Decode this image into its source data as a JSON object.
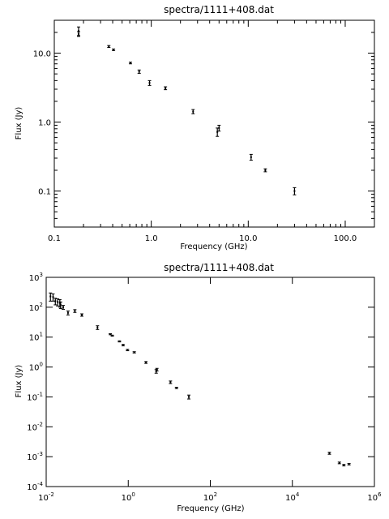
{
  "chart_data": [
    {
      "type": "scatter",
      "title": "spectra/1111+408.dat",
      "xlabel": "Frequency (GHz)",
      "ylabel": "Flux (Jy)",
      "xscale": "log",
      "yscale": "log",
      "xlim": [
        0.1,
        200
      ],
      "ylim": [
        0.03,
        30
      ],
      "x_ticks": [
        {
          "value": 0.1,
          "label": "0.1"
        },
        {
          "value": 1,
          "label": "1.0"
        },
        {
          "value": 10,
          "label": "10.0"
        },
        {
          "value": 100,
          "label": "100.0"
        }
      ],
      "y_ticks": [
        {
          "value": 0.1,
          "label": "0.1"
        },
        {
          "value": 1,
          "label": "1.0"
        },
        {
          "value": 10,
          "label": "10.0"
        }
      ],
      "points": [
        {
          "x": 0.178,
          "y": 21.0,
          "err": 3.0
        },
        {
          "x": 0.178,
          "y": 19.0,
          "err": 1.5
        },
        {
          "x": 0.365,
          "y": 12.5,
          "err": 0.4
        },
        {
          "x": 0.408,
          "y": 11.2,
          "err": 0.3
        },
        {
          "x": 0.61,
          "y": 7.2,
          "err": 0.2
        },
        {
          "x": 0.75,
          "y": 5.4,
          "err": 0.3
        },
        {
          "x": 0.96,
          "y": 3.7,
          "err": 0.3
        },
        {
          "x": 1.4,
          "y": 3.1,
          "err": 0.15
        },
        {
          "x": 2.7,
          "y": 1.42,
          "err": 0.1
        },
        {
          "x": 4.8,
          "y": 0.72,
          "err": 0.1
        },
        {
          "x": 5.0,
          "y": 0.82,
          "err": 0.08
        },
        {
          "x": 10.7,
          "y": 0.31,
          "err": 0.03
        },
        {
          "x": 15.0,
          "y": 0.2,
          "err": 0.01
        },
        {
          "x": 30.0,
          "y": 0.1,
          "err": 0.012
        }
      ]
    },
    {
      "type": "scatter",
      "title": "spectra/1111+408.dat",
      "xlabel": "Frequency (GHz)",
      "ylabel": "Flux (Jy)",
      "xscale": "log",
      "yscale": "log",
      "xlim": [
        0.01,
        1000000
      ],
      "ylim": [
        0.0001,
        1000
      ],
      "x_ticks": [
        {
          "value": 0.01,
          "base": "10",
          "exp": "-2"
        },
        {
          "value": 1,
          "base": "10",
          "exp": "0"
        },
        {
          "value": 100,
          "base": "10",
          "exp": "2"
        },
        {
          "value": 10000,
          "base": "10",
          "exp": "4"
        },
        {
          "value": 1000000,
          "base": "10",
          "exp": "6"
        }
      ],
      "y_ticks": [
        {
          "value": 0.0001,
          "base": "10",
          "exp": "-4"
        },
        {
          "value": 0.001,
          "base": "10",
          "exp": "-3"
        },
        {
          "value": 0.01,
          "base": "10",
          "exp": "-2"
        },
        {
          "value": 0.1,
          "base": "10",
          "exp": "-1"
        },
        {
          "value": 1,
          "base": "10",
          "exp": "0"
        },
        {
          "value": 10,
          "base": "10",
          "exp": "1"
        },
        {
          "value": 100,
          "base": "10",
          "exp": "2"
        },
        {
          "value": 1000,
          "base": "10",
          "exp": "3"
        }
      ],
      "points": [
        {
          "x": 0.0127,
          "y": 230,
          "err": 70
        },
        {
          "x": 0.0147,
          "y": 220,
          "err": 60
        },
        {
          "x": 0.0167,
          "y": 160,
          "err": 40
        },
        {
          "x": 0.019,
          "y": 150,
          "err": 40
        },
        {
          "x": 0.0215,
          "y": 140,
          "err": 40
        },
        {
          "x": 0.0225,
          "y": 120,
          "err": 30
        },
        {
          "x": 0.026,
          "y": 100,
          "err": 15
        },
        {
          "x": 0.034,
          "y": 65,
          "err": 10
        },
        {
          "x": 0.05,
          "y": 75,
          "err": 8
        },
        {
          "x": 0.074,
          "y": 55,
          "err": 5
        },
        {
          "x": 0.178,
          "y": 21,
          "err": 3
        },
        {
          "x": 0.365,
          "y": 12.5,
          "err": 0.5
        },
        {
          "x": 0.408,
          "y": 11.2,
          "err": 0.4
        },
        {
          "x": 0.61,
          "y": 7.2,
          "err": 0.3
        },
        {
          "x": 0.75,
          "y": 5.4,
          "err": 0.3
        },
        {
          "x": 0.96,
          "y": 3.7,
          "err": 0.2
        },
        {
          "x": 1.4,
          "y": 3.1,
          "err": 0.15
        },
        {
          "x": 2.7,
          "y": 1.42,
          "err": 0.1
        },
        {
          "x": 4.8,
          "y": 0.72,
          "err": 0.1
        },
        {
          "x": 5.0,
          "y": 0.82,
          "err": 0.08
        },
        {
          "x": 10.7,
          "y": 0.31,
          "err": 0.03
        },
        {
          "x": 15.0,
          "y": 0.2,
          "err": 0.01
        },
        {
          "x": 30.0,
          "y": 0.1,
          "err": 0.015
        },
        {
          "x": 80000,
          "y": 0.0013,
          "err": 0.0001
        },
        {
          "x": 140000,
          "y": 0.00062,
          "err": 4e-05
        },
        {
          "x": 180000,
          "y": 0.00052,
          "err": 3e-05
        },
        {
          "x": 240000,
          "y": 0.00056,
          "err": 3e-05
        }
      ]
    }
  ]
}
